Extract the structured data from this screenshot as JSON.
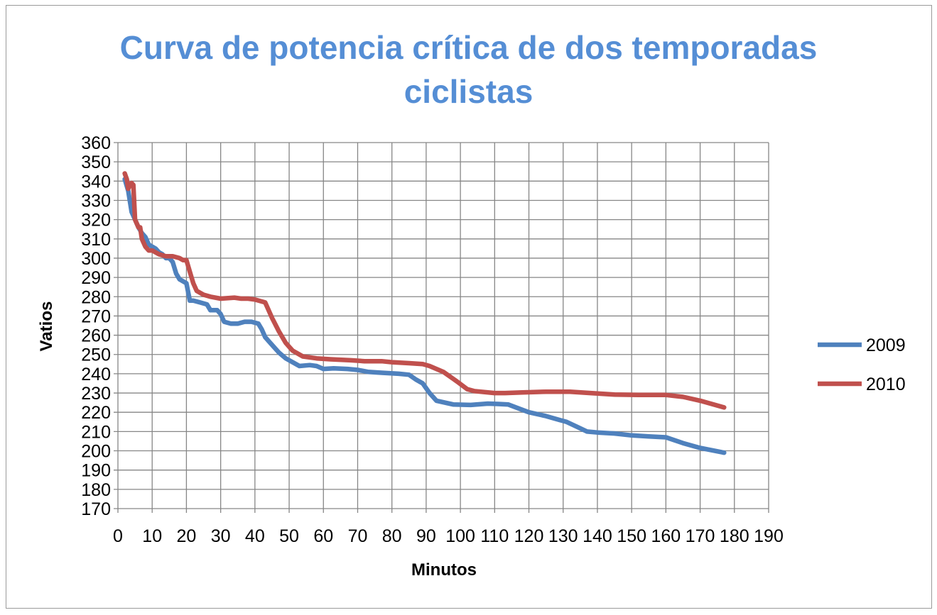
{
  "chart_data": {
    "type": "line",
    "title_lines": [
      "Curva de potencia crítica de dos temporadas",
      "ciclistas"
    ],
    "xlabel": "Minutos",
    "ylabel": "Vatios",
    "xlim": [
      0,
      190
    ],
    "ylim": [
      170,
      360
    ],
    "x_ticks": [
      "0",
      "10",
      "20",
      "30",
      "40",
      "50",
      "60",
      "70",
      "80",
      "90",
      "100",
      "110",
      "120",
      "130",
      "140",
      "150",
      "160",
      "170",
      "180",
      "190"
    ],
    "y_ticks": [
      "170",
      "180",
      "190",
      "200",
      "210",
      "220",
      "230",
      "240",
      "250",
      "260",
      "270",
      "280",
      "290",
      "300",
      "310",
      "320",
      "330",
      "340",
      "350",
      "360"
    ],
    "grid": true,
    "legend_position": "right",
    "series": [
      {
        "name": "2009",
        "color": "#4f81bd",
        "points": [
          [
            2,
            341
          ],
          [
            3,
            335
          ],
          [
            4,
            324
          ],
          [
            5,
            320
          ],
          [
            6,
            316
          ],
          [
            7,
            313
          ],
          [
            8,
            311
          ],
          [
            9,
            307
          ],
          [
            10,
            306
          ],
          [
            11,
            305
          ],
          [
            12,
            303
          ],
          [
            13,
            302
          ],
          [
            14,
            300
          ],
          [
            15,
            300
          ],
          [
            16,
            298
          ],
          [
            17,
            292
          ],
          [
            18,
            289
          ],
          [
            19,
            288
          ],
          [
            20,
            287
          ],
          [
            21,
            278
          ],
          [
            22,
            278
          ],
          [
            24,
            277
          ],
          [
            26,
            276
          ],
          [
            27,
            273
          ],
          [
            29,
            273
          ],
          [
            30,
            271
          ],
          [
            31,
            267
          ],
          [
            33,
            266
          ],
          [
            35,
            266
          ],
          [
            37,
            267
          ],
          [
            39,
            267
          ],
          [
            41,
            266
          ],
          [
            42,
            263
          ],
          [
            43,
            259
          ],
          [
            45,
            255
          ],
          [
            47,
            251
          ],
          [
            49,
            248
          ],
          [
            51,
            246
          ],
          [
            53,
            244
          ],
          [
            56,
            244.5
          ],
          [
            58,
            244
          ],
          [
            60,
            242.5
          ],
          [
            63,
            242.8
          ],
          [
            67,
            242.5
          ],
          [
            70,
            242
          ],
          [
            73,
            241
          ],
          [
            77,
            240.5
          ],
          [
            82,
            240
          ],
          [
            85,
            239.5
          ],
          [
            87,
            237
          ],
          [
            89,
            235
          ],
          [
            91,
            230
          ],
          [
            93,
            226
          ],
          [
            98,
            224
          ],
          [
            103,
            223.8
          ],
          [
            108,
            224.5
          ],
          [
            111,
            224.3
          ],
          [
            114,
            224
          ],
          [
            117,
            222
          ],
          [
            120,
            220
          ],
          [
            125,
            218
          ],
          [
            129,
            216
          ],
          [
            131,
            215
          ],
          [
            134,
            212.5
          ],
          [
            137,
            210
          ],
          [
            140,
            209.5
          ],
          [
            145,
            209
          ],
          [
            150,
            208
          ],
          [
            155,
            207.5
          ],
          [
            160,
            207
          ],
          [
            165,
            204
          ],
          [
            170,
            201.5
          ],
          [
            177,
            199
          ]
        ]
      },
      {
        "name": "2010",
        "color": "#c0504d",
        "points": [
          [
            2,
            344
          ],
          [
            2.6,
            341
          ],
          [
            3,
            336
          ],
          [
            3.5,
            338
          ],
          [
            4,
            339
          ],
          [
            4.5,
            338
          ],
          [
            5,
            320
          ],
          [
            5.5,
            318
          ],
          [
            6,
            316
          ],
          [
            6.5,
            316
          ],
          [
            7,
            310
          ],
          [
            8,
            306
          ],
          [
            9,
            304
          ],
          [
            10,
            304
          ],
          [
            11,
            303
          ],
          [
            12,
            302
          ],
          [
            14,
            301
          ],
          [
            16,
            301
          ],
          [
            18,
            300
          ],
          [
            19,
            299
          ],
          [
            20,
            299
          ],
          [
            21,
            293
          ],
          [
            22,
            287
          ],
          [
            23,
            283
          ],
          [
            25,
            281
          ],
          [
            27,
            280
          ],
          [
            30,
            279
          ],
          [
            34,
            279.5
          ],
          [
            36,
            279
          ],
          [
            38,
            279
          ],
          [
            40,
            278.5
          ],
          [
            43,
            277
          ],
          [
            45,
            269
          ],
          [
            47,
            262
          ],
          [
            49,
            256
          ],
          [
            51,
            252
          ],
          [
            54,
            249
          ],
          [
            58,
            248
          ],
          [
            62,
            247.5
          ],
          [
            68,
            247
          ],
          [
            72,
            246.5
          ],
          [
            77,
            246.5
          ],
          [
            80,
            246
          ],
          [
            85,
            245.5
          ],
          [
            89,
            245
          ],
          [
            91,
            244
          ],
          [
            95,
            241
          ],
          [
            99,
            236
          ],
          [
            102,
            232
          ],
          [
            104,
            231
          ],
          [
            110,
            230
          ],
          [
            113,
            230
          ],
          [
            118,
            230.3
          ],
          [
            125,
            230.7
          ],
          [
            132,
            230.7
          ],
          [
            138,
            230
          ],
          [
            145,
            229.2
          ],
          [
            152,
            229
          ],
          [
            160,
            229
          ],
          [
            165,
            228
          ],
          [
            170,
            226
          ],
          [
            177,
            222.5
          ]
        ]
      }
    ]
  }
}
